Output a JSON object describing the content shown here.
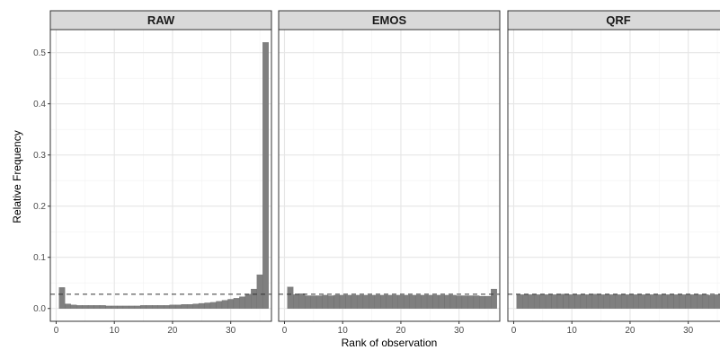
{
  "chart_data": {
    "type": "bar",
    "facet": true,
    "xlabel": "Rank of observation",
    "ylabel": "Relative Frequency",
    "xlim": [
      -1,
      37
    ],
    "ylim": [
      -0.025,
      0.545
    ],
    "x_ticks": [
      0,
      10,
      20,
      30
    ],
    "y_ticks": [
      0.0,
      0.1,
      0.2,
      0.3,
      0.4,
      0.5
    ],
    "y_tick_labels": [
      "0.0",
      "0.1",
      "0.2",
      "0.3",
      "0.4",
      "0.5"
    ],
    "reference_line": 0.0278,
    "grid": true,
    "x": [
      1,
      2,
      3,
      4,
      5,
      6,
      7,
      8,
      9,
      10,
      11,
      12,
      13,
      14,
      15,
      16,
      17,
      18,
      19,
      20,
      21,
      22,
      23,
      24,
      25,
      26,
      27,
      28,
      29,
      30,
      31,
      32,
      33,
      34,
      35,
      36
    ],
    "panels": [
      {
        "name": "RAW",
        "values": [
          0.041,
          0.009,
          0.007,
          0.006,
          0.006,
          0.006,
          0.006,
          0.006,
          0.005,
          0.005,
          0.005,
          0.005,
          0.005,
          0.005,
          0.006,
          0.006,
          0.006,
          0.006,
          0.006,
          0.007,
          0.007,
          0.008,
          0.008,
          0.009,
          0.01,
          0.011,
          0.012,
          0.014,
          0.016,
          0.018,
          0.02,
          0.023,
          0.028,
          0.038,
          0.066,
          0.52
        ]
      },
      {
        "name": "EMOS",
        "values": [
          0.042,
          0.027,
          0.029,
          0.025,
          0.025,
          0.025,
          0.026,
          0.025,
          0.026,
          0.026,
          0.026,
          0.026,
          0.026,
          0.026,
          0.026,
          0.026,
          0.026,
          0.026,
          0.026,
          0.026,
          0.026,
          0.026,
          0.026,
          0.026,
          0.026,
          0.026,
          0.026,
          0.026,
          0.026,
          0.025,
          0.025,
          0.025,
          0.025,
          0.024,
          0.024,
          0.038
        ]
      },
      {
        "name": "QRF",
        "values": [
          0.027,
          0.027,
          0.027,
          0.027,
          0.027,
          0.027,
          0.027,
          0.028,
          0.028,
          0.027,
          0.027,
          0.027,
          0.027,
          0.028,
          0.027,
          0.027,
          0.027,
          0.027,
          0.027,
          0.027,
          0.027,
          0.027,
          0.027,
          0.027,
          0.027,
          0.027,
          0.027,
          0.027,
          0.027,
          0.027,
          0.027,
          0.027,
          0.027,
          0.026,
          0.027,
          0.026
        ]
      }
    ]
  },
  "colors": {
    "bar_fill": "#7f7f7f",
    "strip_fill": "#d9d9d9",
    "grid": "#e6e6e6"
  }
}
